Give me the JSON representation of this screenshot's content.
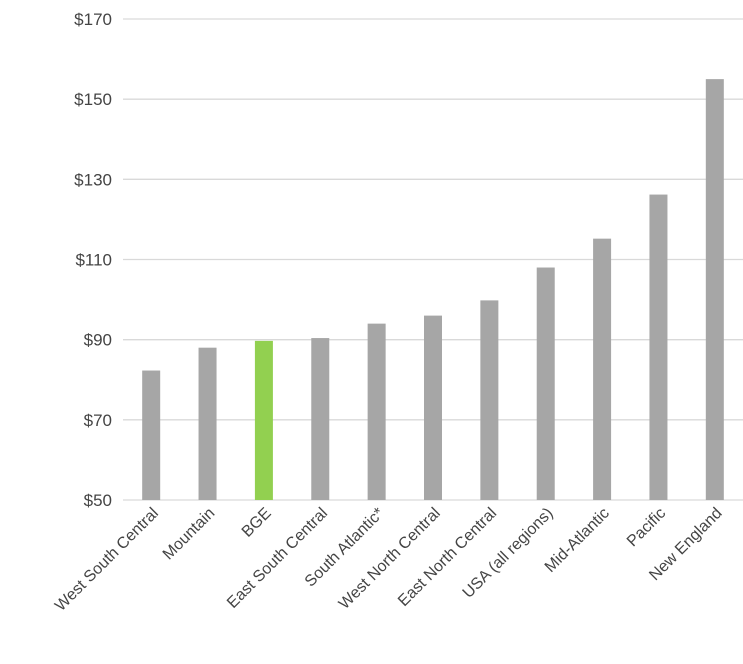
{
  "chart_data": {
    "type": "bar",
    "title": "",
    "xlabel": "",
    "ylabel": "",
    "ylim": [
      50,
      170
    ],
    "yticks": [
      50,
      70,
      90,
      110,
      130,
      150,
      170
    ],
    "ytick_labels": [
      "$50",
      "$70",
      "$90",
      "$110",
      "$130",
      "$150",
      "$170"
    ],
    "categories": [
      "West South Central",
      "Mountain",
      "BGE",
      "East South Central",
      "South Atlantic*",
      "West North Central",
      "East North Central",
      "USA (all regions)",
      "Mid-Atlantic",
      "Pacific",
      "New England"
    ],
    "values": [
      82.3,
      88,
      89.7,
      90.4,
      94,
      96,
      99.8,
      108,
      115.2,
      126.2,
      155
    ],
    "highlight": "BGE",
    "grid": true,
    "colors": {
      "bar": "#a6a6a6",
      "highlight": "#92d050",
      "grid": "#d9d9d9",
      "text": "#444444"
    }
  }
}
